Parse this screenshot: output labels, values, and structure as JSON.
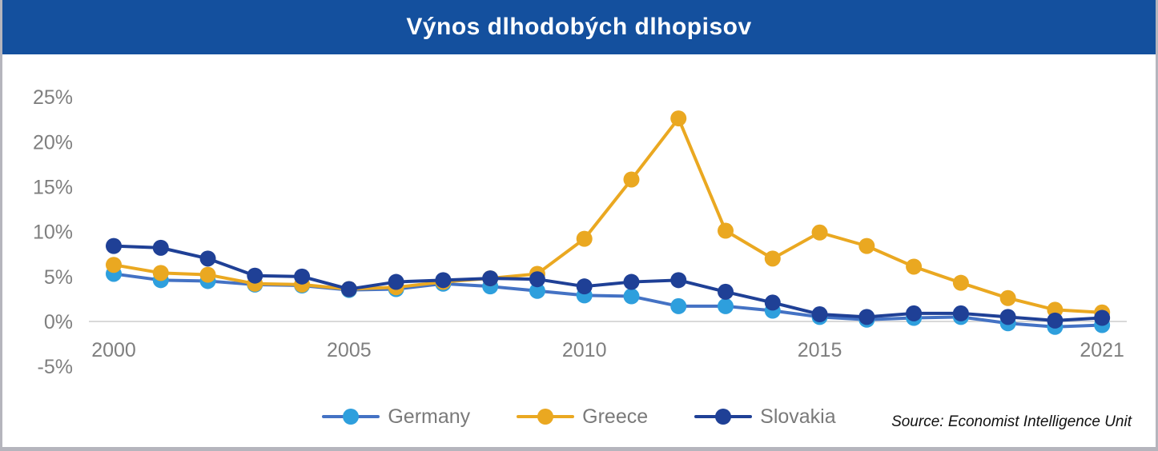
{
  "header": {
    "title": "Výnos dlhodobých dlhopisov",
    "background_color": "#14509E",
    "text_color": "#FFFFFF"
  },
  "source": {
    "text": "Source: Economist Intelligence Unit"
  },
  "colors": {
    "axis_label_gray": "#7F7F7F",
    "zero_gridline": "#D9D9D9",
    "frame_border": "#B5B5BD"
  },
  "chart_data": {
    "type": "line",
    "title": "Výnos dlhodobých dlhopisov",
    "x": [
      2000,
      2001,
      2002,
      2003,
      2004,
      2005,
      2006,
      2007,
      2008,
      2009,
      2010,
      2011,
      2012,
      2013,
      2014,
      2015,
      2016,
      2017,
      2018,
      2019,
      2020,
      2021
    ],
    "x_tick_labels": [
      "2000",
      "2005",
      "2010",
      "2015",
      "2021"
    ],
    "x_tick_years": [
      2000,
      2005,
      2010,
      2015,
      2021
    ],
    "y_ticks": [
      25,
      20,
      15,
      10,
      5,
      0,
      -5
    ],
    "y_tick_suffix": "%",
    "ylim": [
      -5,
      25
    ],
    "grid": "zero-line-only",
    "legend_position": "bottom-center",
    "series": [
      {
        "name": "Germany",
        "line_color": "#4472C4",
        "marker_color": "#2E9FDD",
        "values": [
          5.3,
          4.6,
          4.5,
          4.1,
          4.0,
          3.5,
          3.6,
          4.2,
          3.9,
          3.4,
          2.9,
          2.8,
          1.7,
          1.7,
          1.2,
          0.5,
          0.2,
          0.4,
          0.5,
          -0.2,
          -0.6,
          -0.4
        ]
      },
      {
        "name": "Greece",
        "line_color": "#EAA821",
        "marker_color": "#EAA821",
        "values": [
          6.3,
          5.4,
          5.2,
          4.2,
          4.1,
          3.6,
          3.8,
          4.4,
          4.8,
          5.3,
          9.2,
          15.8,
          22.6,
          10.1,
          7.0,
          9.9,
          8.4,
          6.1,
          4.3,
          2.6,
          1.3,
          1.0
        ]
      },
      {
        "name": "Slovakia",
        "line_color": "#1F4096",
        "marker_color": "#1F4096",
        "values": [
          8.4,
          8.2,
          7.0,
          5.1,
          5.0,
          3.6,
          4.4,
          4.6,
          4.8,
          4.7,
          3.9,
          4.4,
          4.6,
          3.3,
          2.1,
          0.8,
          0.5,
          0.9,
          0.9,
          0.5,
          0.1,
          0.4
        ]
      }
    ]
  }
}
